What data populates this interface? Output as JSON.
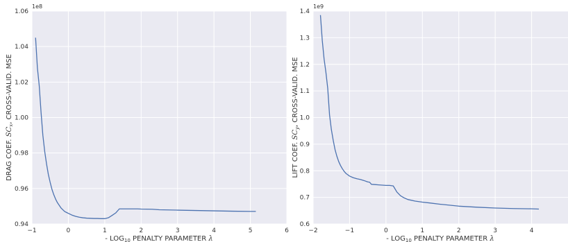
{
  "colors": {
    "line": "#4c72b0",
    "plot_bg": "#eaeaf2",
    "grid": "#ffffff"
  },
  "chart_data": [
    {
      "type": "line",
      "xlabel": {
        "prefix": "- LOG",
        "sub": "10",
        "middle": " PENALTY PARAMETER ",
        "symbol": "λ"
      },
      "ylabel": {
        "prefix": "DRAG COEF. ",
        "symbol": "SC",
        "sub": "x",
        "suffix": ", CROSS-VALID. MSE"
      },
      "offset_text": "1e8",
      "xlim": [
        -1,
        6
      ],
      "ylim": [
        0.94,
        1.06
      ],
      "xticks": [
        -1,
        0,
        1,
        2,
        3,
        4,
        5,
        6
      ],
      "yticks": [
        0.94,
        0.96,
        0.98,
        1.0,
        1.02,
        1.04,
        1.06
      ],
      "xtick_labels": [
        "−1",
        "0",
        "1",
        "2",
        "3",
        "4",
        "5",
        "6"
      ],
      "ytick_labels": [
        "0.94",
        "0.96",
        "0.98",
        "1.00",
        "1.02",
        "1.04",
        "1.06"
      ],
      "grid": true,
      "series": [
        {
          "x": [
            -0.9,
            -0.85,
            -0.8,
            -0.75,
            -0.7,
            -0.65,
            -0.6,
            -0.55,
            -0.5,
            -0.45,
            -0.4,
            -0.35,
            -0.3,
            -0.25,
            -0.2,
            -0.15,
            -0.1,
            -0.05,
            0.0,
            0.1,
            0.2,
            0.3,
            0.4,
            0.5,
            0.6,
            0.7,
            0.8,
            0.9,
            1.0,
            1.1,
            1.2,
            1.3,
            1.4,
            1.5,
            1.7,
            1.9,
            2.0,
            2.3,
            2.5,
            3.0,
            3.5,
            4.0,
            4.5,
            5.0,
            5.15
          ],
          "y": [
            1.045,
            1.028,
            1.018,
            1.003,
            0.99,
            0.981,
            0.974,
            0.968,
            0.9635,
            0.9595,
            0.9565,
            0.954,
            0.952,
            0.9505,
            0.949,
            0.948,
            0.947,
            0.9465,
            0.946,
            0.945,
            0.9443,
            0.9438,
            0.9435,
            0.9433,
            0.9432,
            0.9431,
            0.9431,
            0.943,
            0.943,
            0.9435,
            0.9448,
            0.9462,
            0.9485,
            0.9485,
            0.9485,
            0.9485,
            0.9484,
            0.9483,
            0.948,
            0.9478,
            0.9476,
            0.9474,
            0.9472,
            0.9471,
            0.9471
          ]
        }
      ]
    },
    {
      "type": "line",
      "xlabel": {
        "prefix": "- LOG",
        "sub": "10",
        "middle": " PENALTY PARAMETER ",
        "symbol": "λ"
      },
      "ylabel": {
        "prefix": "LIFT COEF. ",
        "symbol": "SC",
        "sub": "y",
        "suffix": ", CROSS-VALID. MSE"
      },
      "offset_text": "1e9",
      "xlim": [
        -2,
        5
      ],
      "ylim": [
        0.6,
        1.4
      ],
      "xticks": [
        -2,
        -1,
        0,
        1,
        2,
        3,
        4
      ],
      "yticks": [
        0.6,
        0.7,
        0.8,
        0.9,
        1.0,
        1.1,
        1.2,
        1.3,
        1.4
      ],
      "xtick_labels": [
        "−2",
        "−1",
        "0",
        "1",
        "2",
        "3",
        "4"
      ],
      "ytick_labels": [
        "0.6",
        "0.7",
        "0.8",
        "0.9",
        "1.0",
        "1.1",
        "1.2",
        "1.3",
        "1.4"
      ],
      "grid": true,
      "series": [
        {
          "x": [
            -1.8,
            -1.75,
            -1.7,
            -1.65,
            -1.6,
            -1.55,
            -1.5,
            -1.45,
            -1.4,
            -1.35,
            -1.3,
            -1.25,
            -1.2,
            -1.15,
            -1.1,
            -1.05,
            -1.0,
            -0.9,
            -0.8,
            -0.7,
            -0.6,
            -0.5,
            -0.45,
            -0.4,
            -0.3,
            -0.2,
            -0.1,
            0.0,
            0.1,
            0.15,
            0.2,
            0.3,
            0.4,
            0.5,
            0.6,
            0.8,
            1.0,
            1.2,
            1.5,
            2.0,
            2.5,
            3.0,
            3.5,
            4.0,
            4.2
          ],
          "y": [
            1.385,
            1.29,
            1.22,
            1.17,
            1.11,
            1.01,
            0.955,
            0.915,
            0.88,
            0.855,
            0.835,
            0.82,
            0.808,
            0.798,
            0.79,
            0.785,
            0.78,
            0.774,
            0.77,
            0.767,
            0.763,
            0.758,
            0.757,
            0.749,
            0.748,
            0.747,
            0.746,
            0.745,
            0.745,
            0.744,
            0.743,
            0.72,
            0.706,
            0.698,
            0.692,
            0.686,
            0.682,
            0.679,
            0.674,
            0.667,
            0.663,
            0.66,
            0.658,
            0.657,
            0.656
          ]
        }
      ]
    }
  ]
}
